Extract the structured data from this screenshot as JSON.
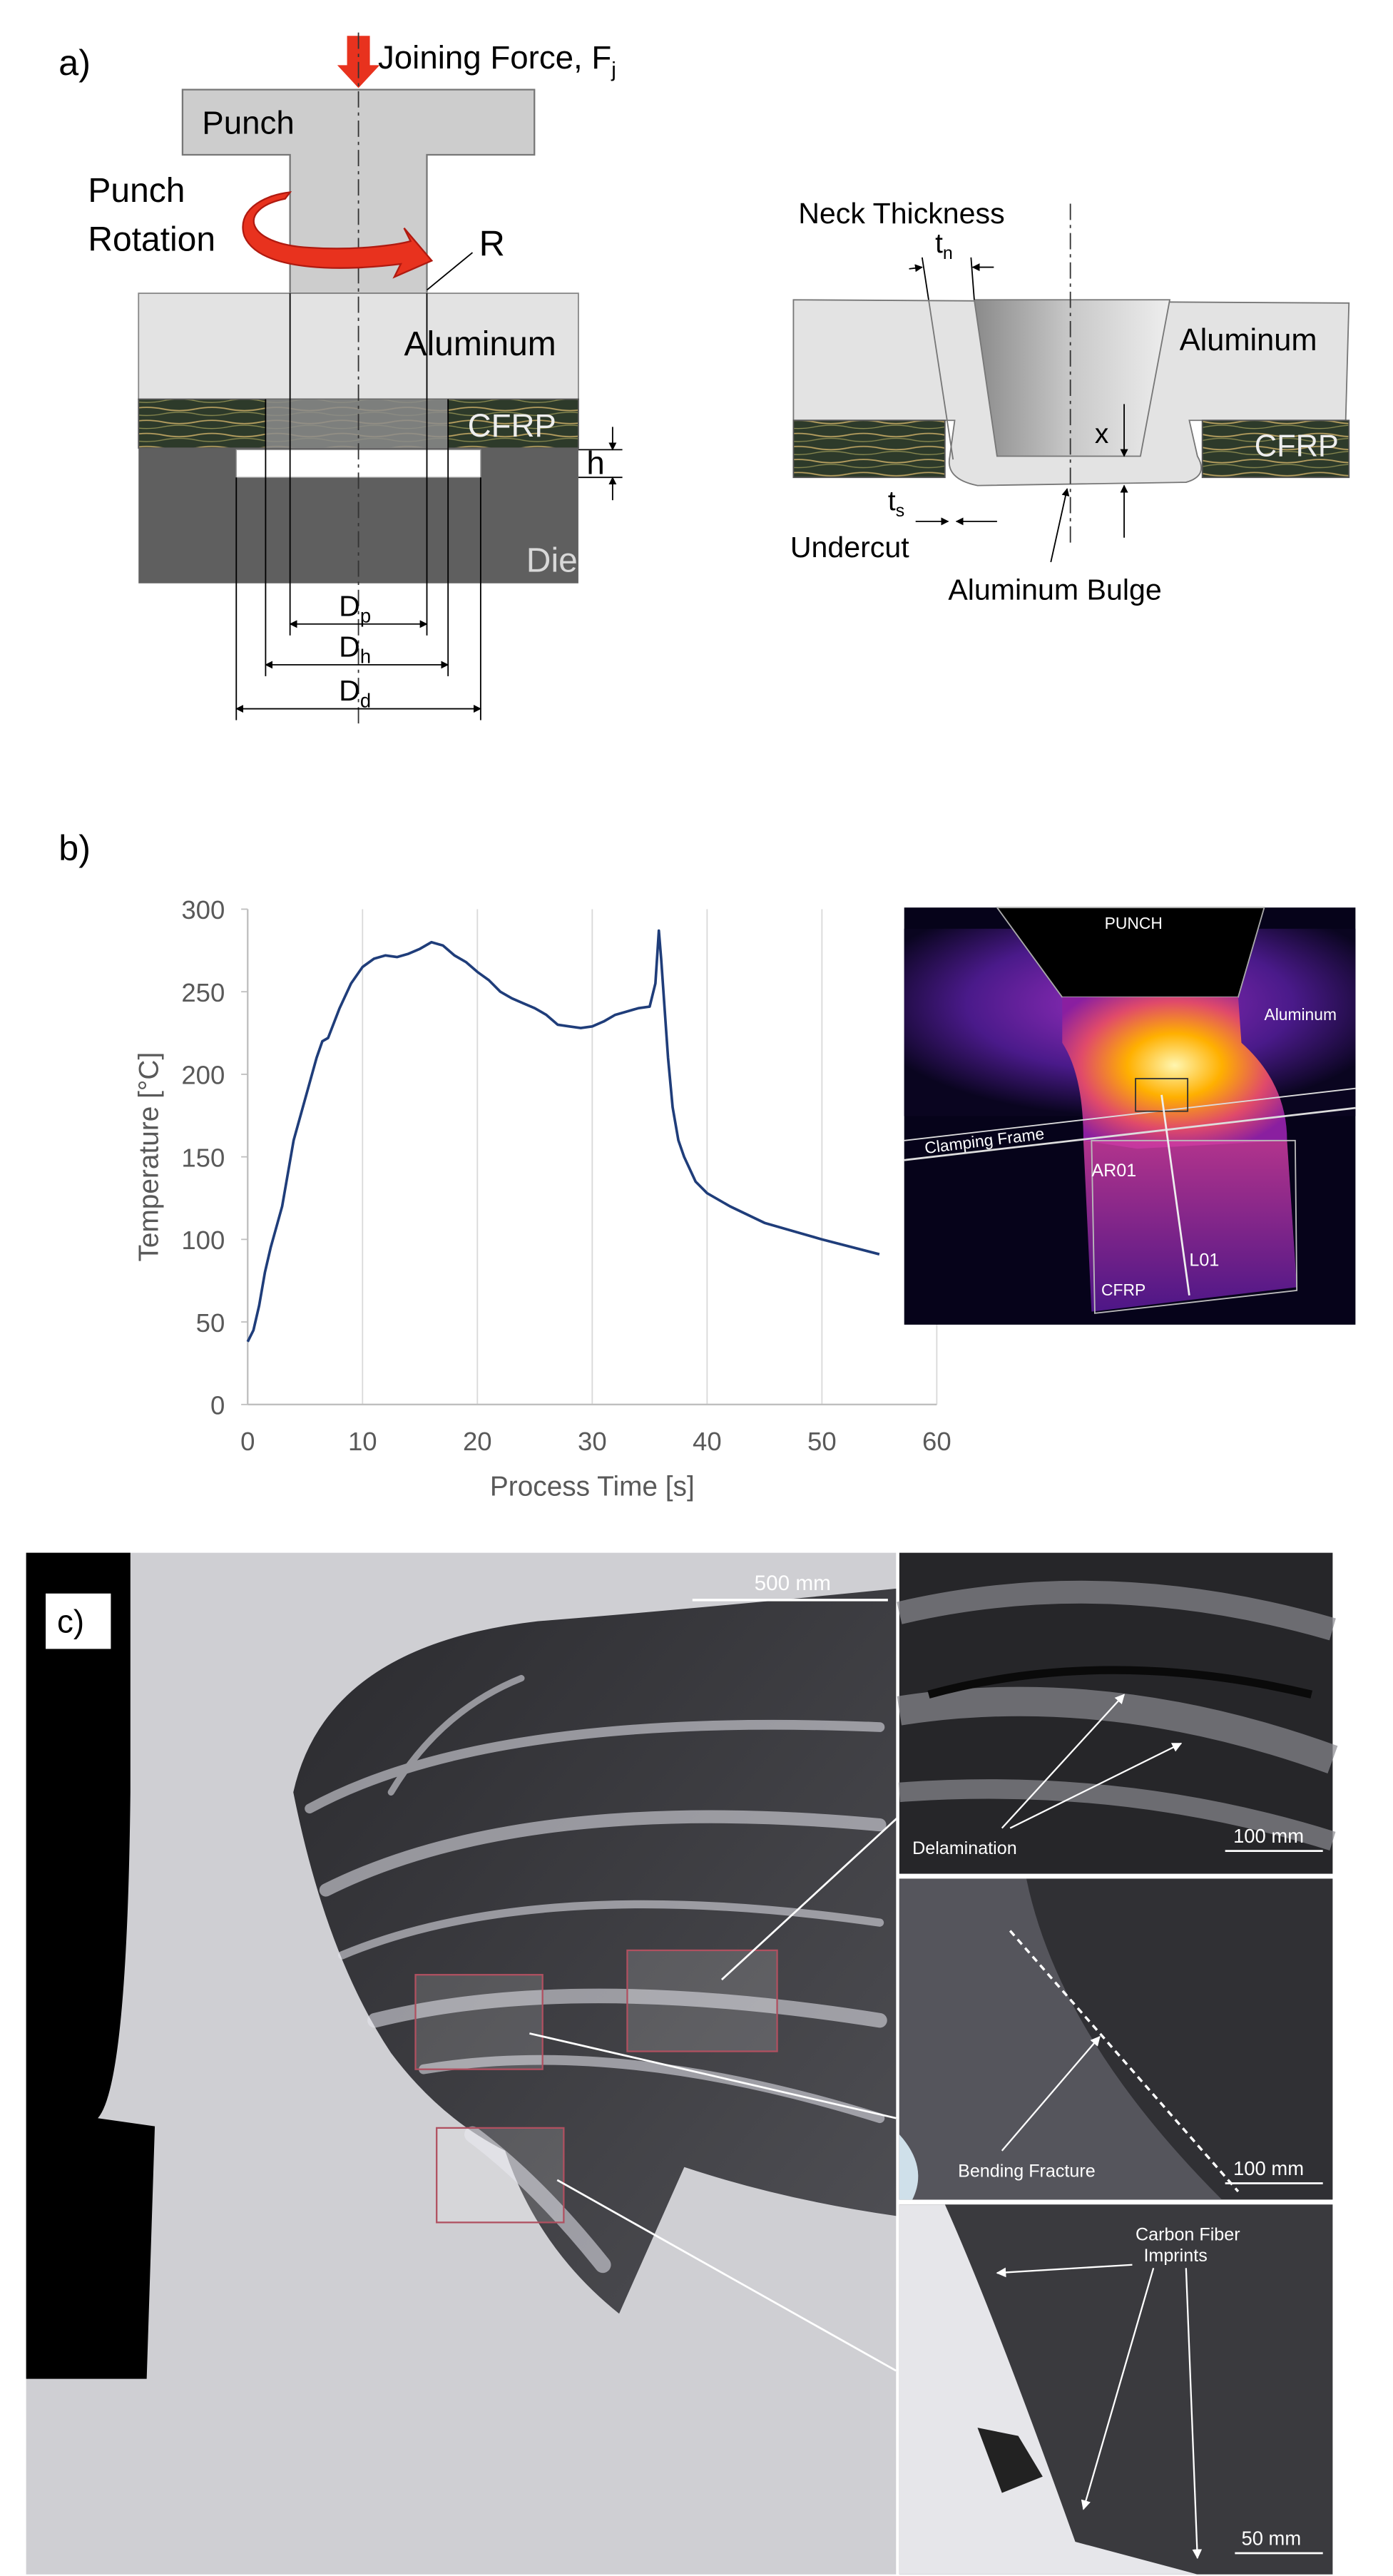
{
  "panel_a": {
    "label": "a)",
    "joining_force": {
      "text": "Joining Force, F",
      "sub": "j"
    },
    "punch": "Punch",
    "punch_rotation": [
      "Punch",
      "Rotation"
    ],
    "radius": "R",
    "aluminum": "Aluminum",
    "cfrp": "CFRP",
    "h": "h",
    "die": "Die",
    "dp": {
      "text": "D",
      "sub": "p"
    },
    "dh": {
      "text": "D",
      "sub": "h"
    },
    "dd": {
      "text": "D",
      "sub": "d"
    },
    "neck_thickness": "Neck Thickness",
    "tn": {
      "text": "t",
      "sub": "n"
    },
    "aluminum_right": "Aluminum",
    "cfrp_right": "CFRP",
    "x": "x",
    "ts": {
      "text": "t",
      "sub": "s"
    },
    "undercut": "Undercut",
    "aluminum_bulge": "Aluminum Bulge"
  },
  "chart_data": {
    "type": "line",
    "panel_label": "b)",
    "x_label": "Process Time [s]",
    "y_label": "Temperature [°C]",
    "color": "#1f3d7a",
    "grid": "x",
    "x": [
      0,
      0.5,
      1,
      1.5,
      2,
      3,
      4,
      5,
      6,
      6.5,
      7,
      8,
      9,
      10,
      11,
      12,
      13,
      14,
      15,
      16,
      17,
      18,
      19,
      20,
      21,
      22,
      23,
      24,
      25,
      26,
      27,
      28,
      29,
      30,
      31,
      32,
      33,
      34,
      35,
      35.5,
      35.8,
      36,
      36.3,
      36.6,
      37,
      37.5,
      38,
      39,
      40,
      42,
      45,
      48,
      50,
      55
    ],
    "values": [
      38,
      45,
      60,
      80,
      95,
      120,
      160,
      185,
      210,
      220,
      222,
      240,
      255,
      265,
      270,
      272,
      271,
      273,
      276,
      280,
      278,
      272,
      268,
      262,
      257,
      250,
      246,
      243,
      240,
      236,
      230,
      229,
      228,
      229,
      232,
      236,
      238,
      240,
      241,
      255,
      287,
      270,
      240,
      210,
      180,
      160,
      150,
      135,
      128,
      120,
      110,
      104,
      100,
      91
    ],
    "xlim": [
      0,
      60
    ],
    "ylim": [
      0,
      300
    ],
    "xticks": [
      0,
      10,
      20,
      30,
      40,
      50,
      60
    ],
    "yticks": [
      0,
      50,
      100,
      150,
      200,
      250,
      300
    ]
  },
  "thermal_image": {
    "punch": "PUNCH",
    "aluminum": "Aluminum",
    "clamping_frame": "Clamping Frame",
    "ar01": "AR01",
    "l01": "L01",
    "cfrp": "CFRP"
  },
  "panel_c": {
    "label": "c)",
    "scale_main": "500 mm",
    "delamination": "Delamination",
    "scale_1": "100 mm",
    "bending_fracture": "Bending Fracture",
    "scale_2": "100 mm",
    "imprints": [
      "Carbon Fiber",
      "Imprints"
    ],
    "scale_3": "50 mm"
  }
}
